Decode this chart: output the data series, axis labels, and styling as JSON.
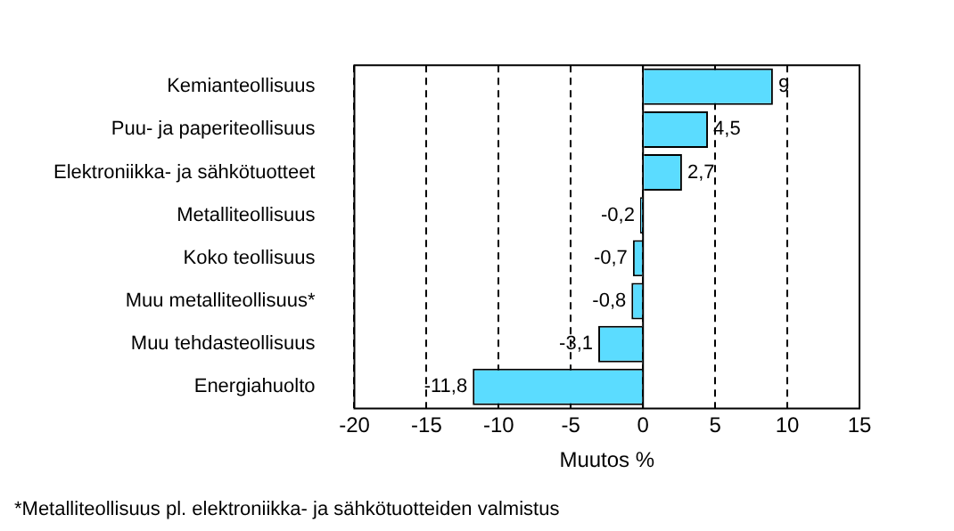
{
  "chart_data": {
    "type": "bar",
    "orientation": "horizontal",
    "xlabel": "Muutos %",
    "categories": [
      "Kemianteollisuus",
      "Puu- ja paperiteollisuus",
      "Elektroniikka- ja sähkötuotteet",
      "Metalliteollisuus",
      "Koko teollisuus",
      "Muu metalliteollisuus*",
      "Muu tehdasteollisuus",
      "Energiahuolto"
    ],
    "values": [
      9,
      4.5,
      2.7,
      -0.2,
      -0.7,
      -0.8,
      -3.1,
      -11.8
    ],
    "value_labels": [
      "9",
      "4,5",
      "2,7",
      "-0,2",
      "-0,7",
      "-0,8",
      "-3,1",
      "-11,8"
    ],
    "color": "#5bdcff",
    "xlim": [
      -20,
      15
    ],
    "xticks": [
      -20,
      -15,
      -10,
      -5,
      0,
      5,
      10,
      15
    ],
    "grid": "x",
    "legend": false,
    "annotations": [
      "*Metalliteollisuus pl. elektroniikka- ja sähkötuotteiden valmistus"
    ]
  }
}
